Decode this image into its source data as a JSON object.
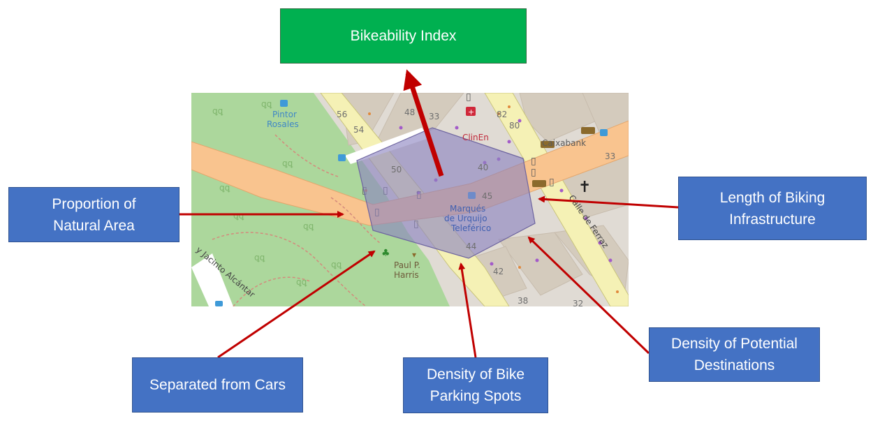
{
  "output": {
    "label": "Bikeability Index"
  },
  "factors": {
    "natural_area": "Proportion of\nNatural Area",
    "separated": "Separated from Cars",
    "bike_parking": "Density of Bike\nParking Spots",
    "destinations": "Density of Potential\nDestinations",
    "infrastructure": "Length of Biking\nInfrastructure"
  },
  "map": {
    "labels": {
      "pintor": "Pintor",
      "rosales": "Rosales",
      "marques": "Marqués",
      "de_urquijo": "de Urquijo",
      "teleferico": "Teleférico",
      "paul": "Paul P.",
      "harris": "Harris",
      "clinica": "ClinEn",
      "caixabank": "Caixabank",
      "calle_ferraz": "Calle de Ferraz",
      "jacinto": "y Jacinto Alcántar"
    },
    "numbers": [
      "56",
      "54",
      "48",
      "33",
      "82",
      "80",
      "50",
      "40",
      "45",
      "44",
      "42",
      "38",
      "32",
      "33"
    ]
  },
  "colors": {
    "box_blue": "#4472c4",
    "box_green": "#00b050",
    "arrow_red": "#c00000",
    "hexagon": "#8b82c0"
  }
}
